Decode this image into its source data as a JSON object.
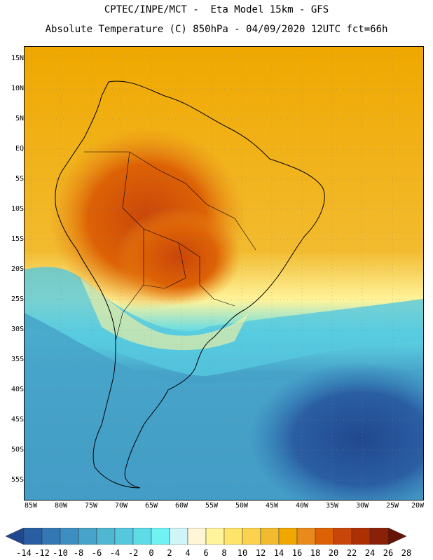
{
  "title": {
    "line1": "CPTEC/INPE/MCT -  Eta Model 15km - GFS",
    "line2": "Absolute Temperature (C) 850hPa - 04/09/2020 12UTC fct=66h"
  },
  "map": {
    "region": "South America and adjacent oceans",
    "lat_labels": [
      "15N",
      "10N",
      "5N",
      "EQ",
      "5S",
      "10S",
      "15S",
      "20S",
      "25S",
      "30S",
      "35S",
      "40S",
      "45S",
      "50S",
      "55S"
    ],
    "lon_labels": [
      "85W",
      "80W",
      "75W",
      "70W",
      "65W",
      "60W",
      "55W",
      "50W",
      "45W",
      "40W",
      "35W",
      "30W",
      "25W",
      "20W"
    ]
  },
  "colorbar": {
    "labels": [
      "-14",
      "-12",
      "-10",
      "-8",
      "-6",
      "-4",
      "-2",
      "0",
      "2",
      "4",
      "6",
      "8",
      "10",
      "12",
      "14",
      "16",
      "18",
      "20",
      "22",
      "24",
      "26",
      "28"
    ],
    "colors": [
      "#21488f",
      "#2a5ea3",
      "#3377b5",
      "#3d8fc2",
      "#47a3c9",
      "#4fb7d2",
      "#56c8de",
      "#5fdbe8",
      "#70f2f5",
      "#cff5f8",
      "#fff6d8",
      "#fff49c",
      "#ffe46b",
      "#fbd24d",
      "#f2bb2f",
      "#f0a800",
      "#e98a1b",
      "#dd6205",
      "#c9460a",
      "#ad3005",
      "#8b2009",
      "#661204"
    ]
  }
}
